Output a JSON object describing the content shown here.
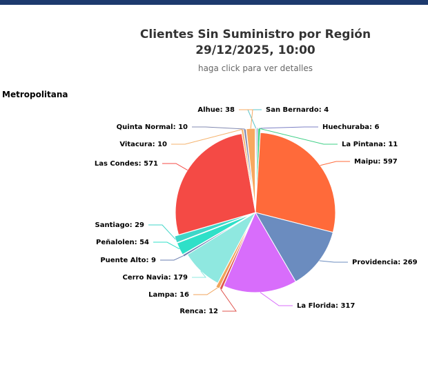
{
  "chart_data": {
    "type": "pie",
    "title_line1": "Clientes Sin Suministro por Región",
    "title_line2": "29/12/2025, 10:00",
    "subtitle": "haga click para ver detalles",
    "region": "Metropolitana",
    "slices": [
      {
        "name": "San Bernardo",
        "value": 4,
        "color": "#5bc5c9"
      },
      {
        "name": "Huechuraba",
        "value": 6,
        "color": "#7b7fc4"
      },
      {
        "name": "La Pintana",
        "value": 11,
        "color": "#3ecf86"
      },
      {
        "name": "Maipu",
        "value": 597,
        "color": "#ff6a3a"
      },
      {
        "name": "Providencia",
        "value": 269,
        "color": "#6b8cbf"
      },
      {
        "name": "La Florida",
        "value": 317,
        "color": "#d86dfb"
      },
      {
        "name": "Renca",
        "value": 12,
        "color": "#e0554f"
      },
      {
        "name": "Lampa",
        "value": 16,
        "color": "#f0a35a"
      },
      {
        "name": "Cerro Navia",
        "value": 179,
        "color": "#8fe8e0"
      },
      {
        "name": "Puente Alto",
        "value": 9,
        "color": "#6a7eb0"
      },
      {
        "name": "Peñalolen",
        "value": 54,
        "color": "#2fe0c8"
      },
      {
        "name": "Santiago",
        "value": 29,
        "color": "#3fd6c8"
      },
      {
        "name": "Las Condes",
        "value": 571,
        "color": "#f44a45"
      },
      {
        "name": "Vitacura",
        "value": 10,
        "color": "#f5b36d"
      },
      {
        "name": "Quinta Normal",
        "value": 10,
        "color": "#8088b0"
      },
      {
        "name": "Alhue",
        "value": 38,
        "color": "#f7a860"
      }
    ]
  }
}
